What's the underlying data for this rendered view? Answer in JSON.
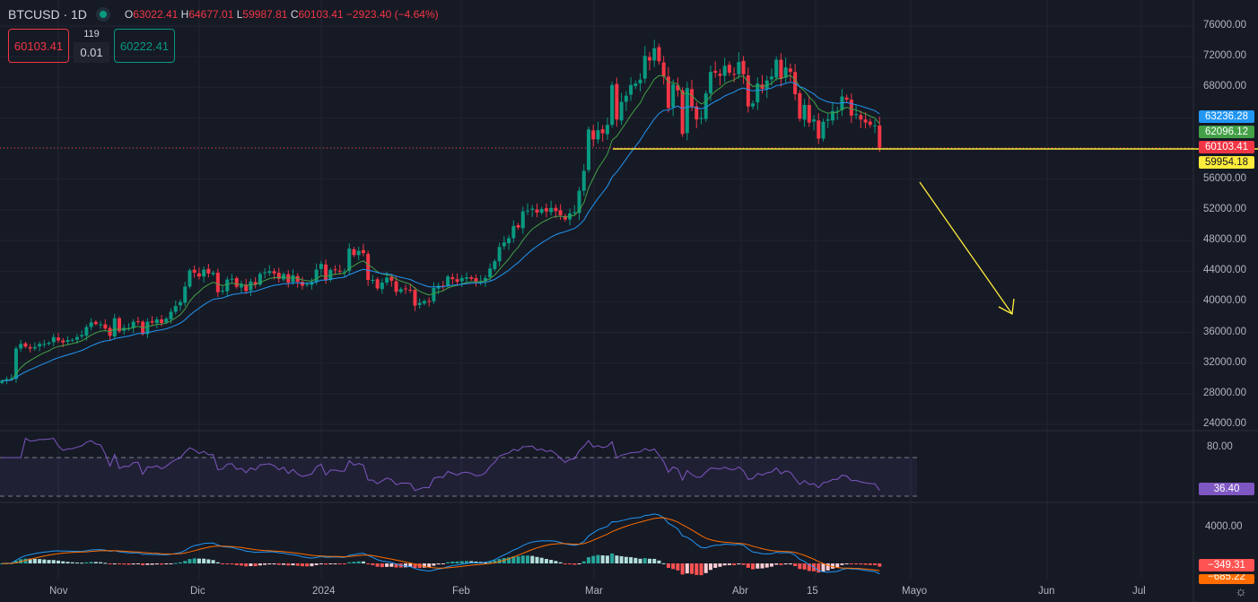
{
  "header": {
    "symbol": "BTCUSD · 1D",
    "open_label": "O",
    "open": "63022.41",
    "high_label": "H",
    "high": "64677.01",
    "low_label": "L",
    "low": "59987.81",
    "close_label": "C",
    "close": "60103.41",
    "change": "−2923.40 (−4.64%)"
  },
  "trade": {
    "sell": "60103.41",
    "buy": "60222.41",
    "spread_top": "119",
    "spread": "0.01"
  },
  "price_axis": [
    "76000.00",
    "72000.00",
    "68000.00",
    "56000.00",
    "52000.00",
    "48000.00",
    "44000.00",
    "40000.00",
    "36000.00",
    "32000.00",
    "28000.00",
    "24000.00"
  ],
  "price_tags": [
    {
      "value": "63236.28",
      "color": "#2196f3"
    },
    {
      "value": "62096.12",
      "color": "#43a047"
    },
    {
      "value": "60103.41",
      "color": "#f23645"
    },
    {
      "value": "59954.18",
      "color": "#ffeb3b"
    }
  ],
  "rsi": {
    "axis": "80.00",
    "value": "36.40",
    "color": "#7e57c2"
  },
  "macd": {
    "axis": "4000.00",
    "value": "−349.31",
    "signal": "−685.22"
  },
  "time_axis": [
    "Nov",
    "Dic",
    "2024",
    "Feb",
    "Mar",
    "Abr",
    "15",
    "Mayo",
    "Jun",
    "Jul"
  ],
  "chart_data": {
    "type": "candlestick",
    "start_date": "2023-10-20",
    "support_level": 59954.18,
    "ylim": [
      24000,
      76000
    ],
    "closes": [
      29700,
      29900,
      30000,
      33900,
      34500,
      34150,
      33900,
      34100,
      34500,
      34500,
      34650,
      35400,
      34950,
      34700,
      35000,
      35050,
      35400,
      35650,
      36700,
      37300,
      37100,
      37050,
      36500,
      35550,
      37850,
      36150,
      36600,
      36580,
      37400,
      37470,
      35800,
      37400,
      37300,
      37700,
      37230,
      37800,
      38700,
      39450,
      39950,
      41980,
      44100,
      43800,
      43300,
      44200,
      43700,
      43800,
      41250,
      41450,
      42900,
      43000,
      41950,
      42250,
      41400,
      42650,
      42250,
      43650,
      43850,
      43990,
      43700,
      43000,
      43600,
      42500,
      43450,
      42600,
      42100,
      42300,
      42600,
      44200,
      44950,
      42850,
      44150,
      44150,
      43950,
      43950,
      46950,
      46100,
      46650,
      46350,
      42850,
      42850,
      41750,
      42500,
      43150,
      42750,
      41300,
      41650,
      41650,
      41550,
      39500,
      39850,
      40100,
      40000,
      41800,
      42100,
      42000,
      43300,
      42950,
      42600,
      43100,
      43200,
      43000,
      42600,
      42700,
      43100,
      44350,
      45300,
      47150,
      47750,
      48300,
      49900,
      49700,
      51800,
      51900,
      52150,
      51650,
      52100,
      51800,
      52250,
      51850,
      51300,
      50750,
      51550,
      51700,
      54500,
      57100,
      62500,
      61200,
      62400,
      62000,
      63100,
      68300,
      63800,
      66100,
      66900,
      68300,
      68500,
      69000,
      72100,
      71500,
      73100,
      71400,
      69400,
      65300,
      68400,
      67600,
      61900,
      67900,
      65500,
      63800,
      64000,
      67200,
      70000,
      69900,
      69500,
      70800,
      69900,
      69700,
      71300,
      69700,
      65500,
      65900,
      68500,
      67800,
      68900,
      69400,
      71600,
      69100,
      70600,
      70000,
      67100,
      63900,
      65700,
      63400,
      63800,
      61300,
      63500,
      63800,
      64900,
      64900,
      66800,
      66400,
      64300,
      64500,
      63800,
      63400,
      63100,
      63022,
      60103
    ]
  }
}
